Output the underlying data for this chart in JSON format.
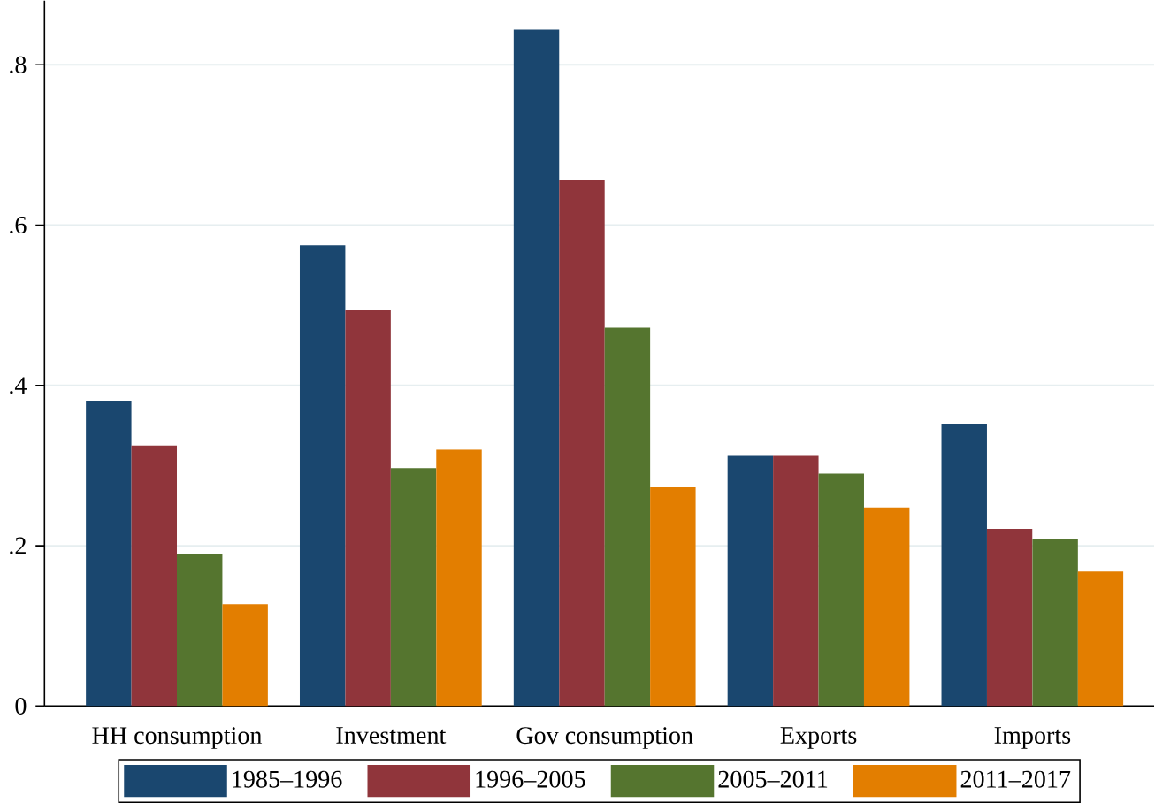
{
  "chart_data": {
    "type": "bar",
    "categories": [
      "HH consumption",
      "Investment",
      "Gov consumption",
      "Exports",
      "Imports"
    ],
    "series": [
      {
        "name": "1985–1996",
        "color": "#1a476f",
        "values": [
          0.381,
          0.575,
          0.844,
          0.312,
          0.352
        ]
      },
      {
        "name": "1996–2005",
        "color": "#90353b",
        "values": [
          0.325,
          0.494,
          0.657,
          0.312,
          0.221
        ]
      },
      {
        "name": "2005–2011",
        "color": "#55752f",
        "values": [
          0.19,
          0.297,
          0.472,
          0.29,
          0.208
        ]
      },
      {
        "name": "2011–2017",
        "color": "#e37e00",
        "values": [
          0.127,
          0.32,
          0.273,
          0.248,
          0.168
        ]
      }
    ],
    "ylim": [
      0,
      0.88
    ],
    "yticks": [
      0,
      {
        "value": 0.2,
        "label": ".2"
      },
      {
        "value": 0.4,
        "label": ".4"
      },
      {
        "value": 0.6,
        "label": ".6"
      },
      {
        "value": 0.8,
        "label": ".8"
      }
    ],
    "grid": "y",
    "legend": "bottom"
  }
}
